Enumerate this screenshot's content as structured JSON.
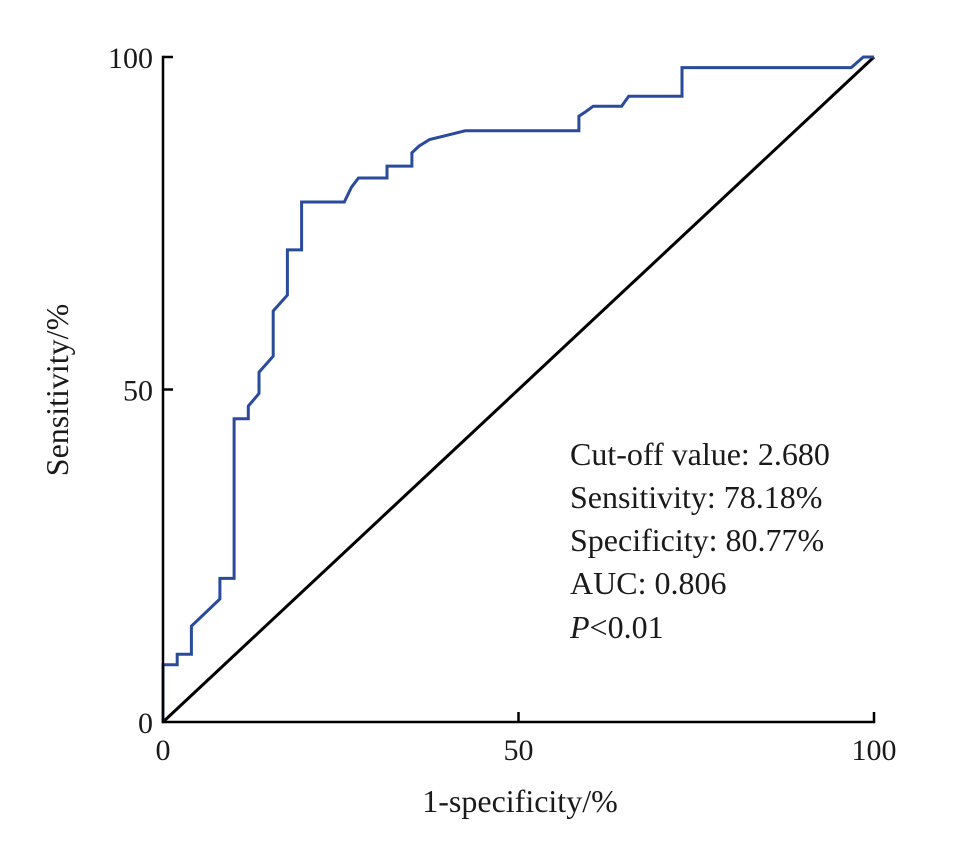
{
  "chart_data": {
    "type": "line",
    "xlabel": "1-specificity/%",
    "ylabel": "Sensitivity/%",
    "xlim": [
      0,
      100
    ],
    "ylim": [
      0,
      100
    ],
    "xticks": [
      "0",
      "50",
      "100"
    ],
    "yticks": [
      "0",
      "50",
      "100"
    ],
    "grid": false,
    "colors": {
      "roc": "#2a4b9b",
      "reference": "#000000",
      "axis": "#000000"
    },
    "series": [
      {
        "x": [
          0,
          0,
          2,
          2,
          4,
          4,
          8,
          8,
          10,
          10,
          12,
          12,
          13.5,
          13.5,
          15.5,
          15.5,
          17.5,
          17.5,
          19.5,
          19.5,
          25.5,
          26.5,
          27.5,
          31.5,
          31.5,
          35,
          35,
          36,
          37.5,
          39.5,
          42.5,
          58.5,
          58.5,
          59.5,
          60.5,
          64.5,
          65.5,
          73,
          73,
          96.8,
          98.5,
          100
        ],
        "y": [
          0,
          8.6,
          8.6,
          10.2,
          10.2,
          14.4,
          18.5,
          21.6,
          21.6,
          45.6,
          45.6,
          47.5,
          49.4,
          52.6,
          55,
          61.8,
          64.2,
          71,
          71,
          78.2,
          78.2,
          80.4,
          81.8,
          81.8,
          83.6,
          83.6,
          85.6,
          86.6,
          87.6,
          88.1,
          88.9,
          88.9,
          91.1,
          91.8,
          92.6,
          92.6,
          94.1,
          94.1,
          98.4,
          98.4,
          100,
          100
        ]
      },
      {
        "x": [
          0,
          100
        ],
        "y": [
          0,
          100
        ]
      }
    ],
    "annotations": {
      "cutoff": "Cut-off value: 2.680",
      "sensitivity": "Sensitivity: 78.18%",
      "specificity": "Specificity: 80.77%",
      "auc": "AUC: 0.806",
      "p_symbol": "P",
      "p_value": "<0.01"
    }
  }
}
